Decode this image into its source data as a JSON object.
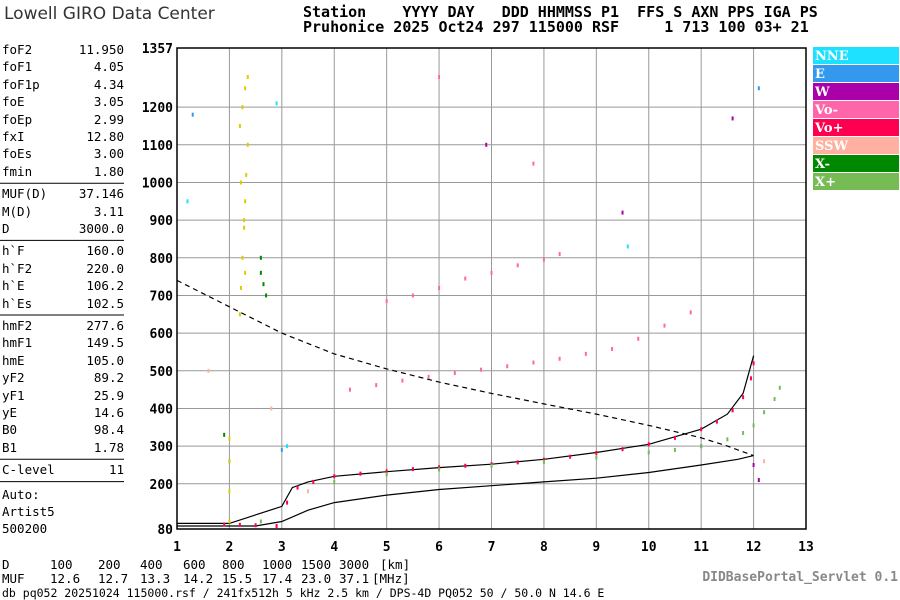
{
  "header": {
    "logo": "Lowell GIRO Data Center",
    "line1": "Station    YYYY DAY   DDD HHMMSS P1  FFS S AXN PPS IGA PS",
    "line2": "Pruhonice 2025 Oct24 297 115000 RSF     1 713 100 03+ 21"
  },
  "parameters": [
    [
      [
        "foF2",
        "11.950"
      ],
      [
        "foF1",
        "4.05"
      ],
      [
        "foF1p",
        "4.34"
      ],
      [
        "foE",
        "3.05"
      ],
      [
        "foEp",
        "2.99"
      ],
      [
        "fxI",
        "12.80"
      ],
      [
        "foEs",
        "3.00"
      ],
      [
        "fmin",
        "1.80"
      ]
    ],
    [
      [
        "MUF(D)",
        "37.146"
      ],
      [
        "M(D)",
        "3.11"
      ],
      [
        "D",
        "3000.0"
      ]
    ],
    [
      [
        "h`F",
        "160.0"
      ],
      [
        "h`F2",
        "220.0"
      ],
      [
        "h`E",
        "106.2"
      ],
      [
        "h`Es",
        "102.5"
      ]
    ],
    [
      [
        "hmF2",
        "277.6"
      ],
      [
        "hmF1",
        "149.5"
      ],
      [
        "hmE",
        "105.0"
      ],
      [
        "yF2",
        "89.2"
      ],
      [
        "yF1",
        "25.9"
      ],
      [
        "yE",
        "14.6"
      ],
      [
        "B0",
        "98.4"
      ],
      [
        "B1",
        "1.78"
      ]
    ],
    [
      [
        "C-level",
        "11"
      ]
    ]
  ],
  "auto": [
    "Auto:",
    "Artist5",
    "500200"
  ],
  "muf_table": {
    "d_label": "D",
    "d_values": [
      "100",
      "200",
      "400",
      "600",
      "800",
      "1000",
      "1500",
      "3000"
    ],
    "d_unit": "[km]",
    "muf_label": "MUF",
    "muf_values": [
      "12.6",
      "12.7",
      "13.3",
      "14.2",
      "15.5",
      "17.4",
      "23.0",
      "37.1"
    ],
    "muf_unit": "[MHz]"
  },
  "footer": {
    "servlet": "DIDBasePortal_Servlet 0.1",
    "info": "db pq052 20251024 115000.rsf / 241fx512h 5 kHz 2.5 km / DPS-4D PQ052 50 / 50.0 N 14.6 E"
  },
  "chart_data": {
    "type": "scatter",
    "xlim": [
      1,
      13
    ],
    "ylim": [
      80,
      1357
    ],
    "xticks": [
      1,
      2,
      3,
      4,
      5,
      6,
      7,
      8,
      9,
      10,
      11,
      12,
      13
    ],
    "yticks": [
      80,
      200,
      300,
      400,
      500,
      600,
      700,
      800,
      900,
      1000,
      1100,
      1200,
      1357
    ],
    "grid": true,
    "series": [
      {
        "name": "NNE",
        "color": "#1ee0ff",
        "x": [
          1.2,
          2.9,
          3.1,
          9.6
        ],
        "values": [
          950,
          1210,
          300,
          830
        ]
      },
      {
        "name": "E",
        "color": "#3399ee",
        "x": [
          1.3,
          2.0,
          3.0,
          11.0,
          12.1
        ],
        "values": [
          1180,
          260,
          290,
          300,
          1250
        ]
      },
      {
        "name": "W",
        "color": "#aa00aa",
        "x": [
          6.9,
          9.5,
          11.6,
          12.0,
          12.1
        ],
        "values": [
          1100,
          920,
          1170,
          250,
          210
        ]
      },
      {
        "name": "Vo-",
        "color": "#ff66aa",
        "x": [
          4.3,
          4.8,
          5.3,
          5.8,
          6.3,
          6.8,
          7.3,
          7.8,
          8.3,
          8.8,
          9.3,
          9.8,
          10.3,
          10.8,
          5.0,
          5.5,
          6.0,
          6.5,
          7.0,
          7.5,
          8.0,
          8.3,
          6.0,
          7.8
        ],
        "values": [
          450,
          462,
          474,
          484,
          494,
          503,
          512,
          522,
          532,
          545,
          558,
          585,
          620,
          655,
          685,
          700,
          720,
          745,
          760,
          780,
          795,
          810,
          1280,
          1050
        ]
      },
      {
        "name": "Vo+",
        "color": "#ff0050",
        "x": [
          1.9,
          2.2,
          2.5,
          2.9,
          3.1,
          3.3,
          3.6,
          4.0,
          4.5,
          5.0,
          5.5,
          6.0,
          6.5,
          7.0,
          7.5,
          8.0,
          8.5,
          9.0,
          9.5,
          10.0,
          10.5,
          11.0,
          11.3,
          11.6,
          11.8,
          11.95,
          12.0
        ],
        "values": [
          92,
          91,
          90,
          88,
          150,
          190,
          205,
          220,
          227,
          233,
          239,
          244,
          248,
          252,
          257,
          264,
          272,
          282,
          292,
          305,
          322,
          345,
          365,
          395,
          430,
          480,
          520
        ]
      },
      {
        "name": "SSW",
        "color": "#ffb0a0",
        "x": [
          1.6,
          2.8,
          3.5,
          12.2
        ],
        "values": [
          500,
          400,
          180,
          260
        ]
      },
      {
        "name": "X-",
        "color": "#008800",
        "x": [
          2.6,
          2.6,
          2.65,
          2.7,
          1.9
        ],
        "values": [
          800,
          760,
          730,
          700,
          330
        ]
      },
      {
        "name": "X+",
        "color": "#77bb55",
        "x": [
          2.6,
          4.0,
          5.0,
          6.0,
          7.0,
          8.0,
          9.0,
          10.0,
          10.5,
          11.0,
          11.5,
          11.8,
          12.0,
          12.2,
          12.4,
          12.5
        ],
        "values": [
          100,
          205,
          225,
          238,
          248,
          258,
          270,
          283,
          290,
          300,
          318,
          335,
          355,
          390,
          425,
          455
        ]
      },
      {
        "color": "#ddcc00",
        "x": [
          2.2,
          2.22,
          2.25,
          2.28,
          2.3,
          2.32,
          2.35,
          2.2,
          2.25,
          2.3,
          2.35,
          2.22,
          2.28,
          2.3,
          2.0,
          2.0,
          2.0,
          2.0
        ],
        "values": [
          650,
          720,
          800,
          880,
          950,
          1020,
          1100,
          1150,
          1200,
          1250,
          1280,
          1000,
          900,
          760,
          100,
          180,
          260,
          320
        ]
      }
    ],
    "lines": [
      {
        "color": "#000",
        "style": "solid",
        "x": [
          1.0,
          2.0,
          3.0,
          3.2,
          3.5,
          4.0,
          5.0,
          6.0,
          7.0,
          8.0,
          9.0,
          10.0,
          11.0,
          11.5,
          11.8,
          12.0
        ],
        "values": [
          95,
          95,
          140,
          190,
          205,
          220,
          232,
          243,
          252,
          265,
          283,
          305,
          345,
          385,
          440,
          540
        ]
      },
      {
        "color": "#000",
        "style": "solid",
        "x": [
          1.0,
          2.5,
          3.0,
          3.5,
          4.0,
          5.0,
          6.0,
          7.0,
          8.0,
          9.0,
          10.0,
          11.0,
          11.7,
          12.0
        ],
        "values": [
          88,
          88,
          100,
          130,
          150,
          170,
          185,
          195,
          205,
          215,
          230,
          250,
          265,
          275
        ]
      },
      {
        "color": "#000",
        "style": "dashed",
        "x": [
          1.0,
          2.0,
          3.0,
          4.0,
          5.0,
          6.0,
          7.0,
          8.0,
          9.0,
          10.0,
          11.0,
          11.5,
          12.0
        ],
        "values": [
          740,
          670,
          600,
          545,
          505,
          470,
          440,
          412,
          385,
          355,
          322,
          300,
          275
        ]
      }
    ]
  }
}
